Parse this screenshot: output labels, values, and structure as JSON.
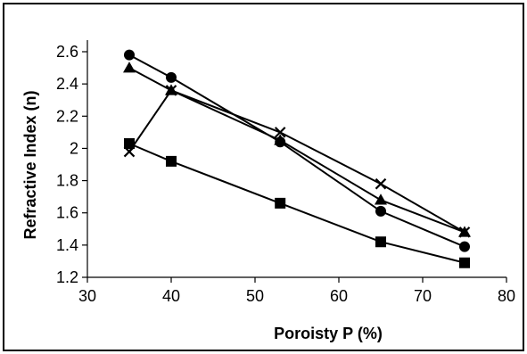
{
  "chart_data": {
    "type": "line",
    "title": "",
    "xlabel": "Poroisty P (%)",
    "ylabel": "Refractive Index (n)",
    "xlim": [
      30,
      80
    ],
    "ylim": [
      1.2,
      2.7
    ],
    "xticks": [
      "30",
      "40",
      "50",
      "60",
      "70",
      "80"
    ],
    "yticks": [
      "1.2",
      "1.4",
      "1.6",
      "1.8",
      "2",
      "2.2",
      "2.4",
      "2.6"
    ],
    "grid": false,
    "legend": "none",
    "series": [
      {
        "marker": "circle",
        "x": [
          35,
          40,
          53,
          65,
          75
        ],
        "y": [
          2.58,
          2.44,
          2.04,
          1.61,
          1.39
        ]
      },
      {
        "marker": "triangle",
        "x": [
          35,
          40,
          53,
          65,
          75
        ],
        "y": [
          2.5,
          2.36,
          2.05,
          1.68,
          1.48
        ]
      },
      {
        "marker": "cross",
        "x": [
          35,
          40,
          53,
          65,
          75
        ],
        "y": [
          1.98,
          2.36,
          2.1,
          1.78,
          1.48
        ]
      },
      {
        "marker": "square",
        "x": [
          35,
          40,
          53,
          65,
          75
        ],
        "y": [
          2.03,
          1.92,
          1.66,
          1.42,
          1.29
        ]
      }
    ],
    "colors": {
      "line": "#000000",
      "marker": "#000000"
    }
  }
}
